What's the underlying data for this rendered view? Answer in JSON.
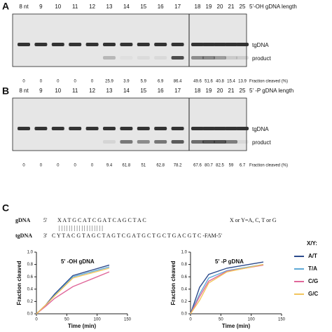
{
  "panels": [
    {
      "label": "A",
      "lanes": [
        "8 nt",
        "9",
        "10",
        "11",
        "12",
        "13",
        "14",
        "15",
        "16",
        "17",
        "18",
        "19",
        "20",
        "21",
        "25"
      ],
      "length_title": "5'-OH gDNA length",
      "bands": [
        "tgDNA",
        "product"
      ],
      "fractions": [
        0,
        0,
        0,
        0,
        0,
        25.9,
        3.9,
        5.9,
        6.9,
        86.4,
        49.6,
        51.6,
        40.8,
        15.4,
        13.9
      ],
      "fraction_title": "Fraction cleaved (%)"
    },
    {
      "label": "B",
      "lanes": [
        "8 nt",
        "9",
        "10",
        "11",
        "12",
        "13",
        "14",
        "15",
        "16",
        "17",
        "18",
        "19",
        "20",
        "21",
        "25"
      ],
      "length_title": "5' -P gDNA length",
      "bands": [
        "tgDNA",
        "product"
      ],
      "fractions": [
        0,
        0,
        0,
        0,
        0,
        9.4,
        61.8,
        51,
        62.8,
        78.2,
        67.6,
        80.7,
        82.5,
        59,
        6.7
      ],
      "fraction_title": "Fraction cleaved  (%)"
    }
  ],
  "panel_c": {
    "label": "C",
    "gdna_name": "gDNA",
    "gdna_end": "5'",
    "gdna_seq": "X A T G C A T C G A T C A G C T A C",
    "note": "X or Y=A, C, T or G",
    "tgdna_name": "tgDNA",
    "tgdna_end": "3'",
    "tgdna_seq": "C Y T A C G T A G C T A G T C G A T G C T G C T G A C G T C -FAM-5'",
    "legend_title": "X/Y:"
  },
  "chart_data": [
    {
      "type": "line",
      "title": "5' -OH gDNA",
      "xlabel": "Time (min)",
      "ylabel": "Fraction cleaved",
      "x": [
        0,
        15,
        30,
        60,
        120
      ],
      "xlim": [
        0,
        150
      ],
      "xticks": [
        0,
        50,
        100,
        150
      ],
      "ylim": [
        0,
        1
      ],
      "yticks": [
        {
          "value": 0,
          "label": "0.0"
        },
        0.2,
        0.4,
        0.6,
        0.8,
        {
          "value": 1,
          "label": "1.0"
        }
      ],
      "series": [
        {
          "name": "A/T",
          "color": "#2c4a8c",
          "values": [
            0,
            0.14,
            0.32,
            0.62,
            0.79
          ]
        },
        {
          "name": "T/A",
          "color": "#5ea9d6",
          "values": [
            0,
            0.13,
            0.3,
            0.6,
            0.76
          ]
        },
        {
          "name": "C/G",
          "color": "#e0679a",
          "values": [
            0,
            0.12,
            0.25,
            0.44,
            0.68
          ]
        },
        {
          "name": "G/C",
          "color": "#f2c55c",
          "values": [
            0,
            0.14,
            0.29,
            0.58,
            0.74
          ]
        }
      ]
    },
    {
      "type": "line",
      "title": "5' -P gDNA",
      "xlabel": "Time (min)",
      "ylabel": "Fraction cleaved",
      "x": [
        0,
        15,
        30,
        60,
        120
      ],
      "xlim": [
        0,
        150
      ],
      "xticks": [
        0,
        50,
        100,
        150
      ],
      "ylim": [
        0,
        1
      ],
      "yticks": [
        {
          "value": 0,
          "label": "0.0"
        },
        0.2,
        0.4,
        0.6,
        0.8,
        {
          "value": 1,
          "label": "1.0"
        }
      ],
      "series": [
        {
          "name": "A/T",
          "color": "#2c4a8c",
          "values": [
            0,
            0.43,
            0.64,
            0.74,
            0.84
          ]
        },
        {
          "name": "T/A",
          "color": "#5ea9d6",
          "values": [
            0,
            0.32,
            0.58,
            0.7,
            0.8
          ]
        },
        {
          "name": "C/G",
          "color": "#e0679a",
          "values": [
            0,
            0.28,
            0.53,
            0.69,
            0.79
          ]
        },
        {
          "name": "G/C",
          "color": "#f2c55c",
          "values": [
            0,
            0.22,
            0.5,
            0.68,
            0.8
          ]
        }
      ]
    }
  ]
}
